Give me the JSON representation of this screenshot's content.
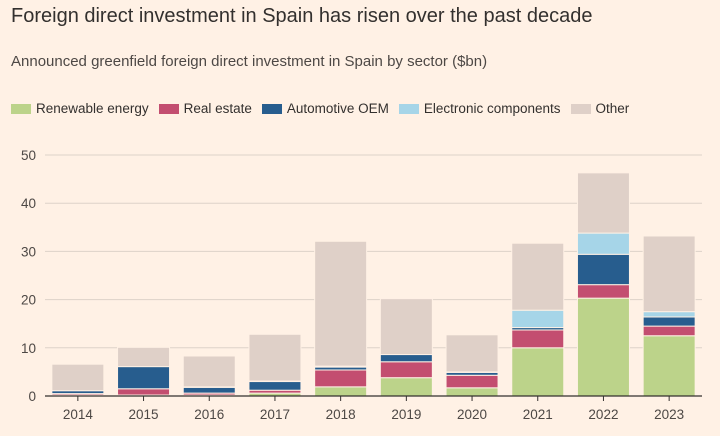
{
  "chart_data": {
    "type": "bar",
    "stacked": true,
    "title": "Foreign direct investment in Spain has risen over the past decade",
    "subtitle": "Announced greenfield foreign direct investment in Spain by sector ($bn)",
    "xlabel": "",
    "ylabel": "",
    "ylim": [
      0,
      50
    ],
    "yticks": [
      0,
      10,
      20,
      30,
      40,
      50
    ],
    "grid": true,
    "legend_position": "top",
    "categories": [
      "2014",
      "2015",
      "2016",
      "2017",
      "2018",
      "2019",
      "2020",
      "2021",
      "2022",
      "2023"
    ],
    "series": [
      {
        "name": "Renewable energy",
        "color": "#bcd38a",
        "values": [
          0.2,
          0.2,
          0.2,
          0.6,
          1.9,
          3.8,
          1.7,
          10.0,
          20.3,
          12.5
        ]
      },
      {
        "name": "Real estate",
        "color": "#c34e70",
        "values": [
          0.3,
          1.3,
          0.4,
          0.6,
          3.5,
          3.3,
          2.6,
          3.7,
          2.8,
          2.0
        ]
      },
      {
        "name": "Automotive OEM",
        "color": "#275d8e",
        "values": [
          0.6,
          4.6,
          1.2,
          1.8,
          0.6,
          1.5,
          0.6,
          0.5,
          6.3,
          1.9
        ]
      },
      {
        "name": "Electronic components",
        "color": "#a6d5e8",
        "values": [
          0.0,
          0.0,
          0.1,
          0.1,
          0.2,
          0.0,
          0.1,
          3.6,
          4.4,
          1.1
        ]
      },
      {
        "name": "Other",
        "color": "#dfd0c8",
        "values": [
          5.5,
          4.0,
          6.4,
          9.7,
          25.9,
          11.6,
          7.7,
          13.9,
          12.5,
          15.7
        ]
      }
    ]
  },
  "legend_title": "",
  "colors": {
    "background": "#fff1e5",
    "gridline": "#ddd2c9",
    "axis": "#33302e",
    "text": "#33302e"
  }
}
